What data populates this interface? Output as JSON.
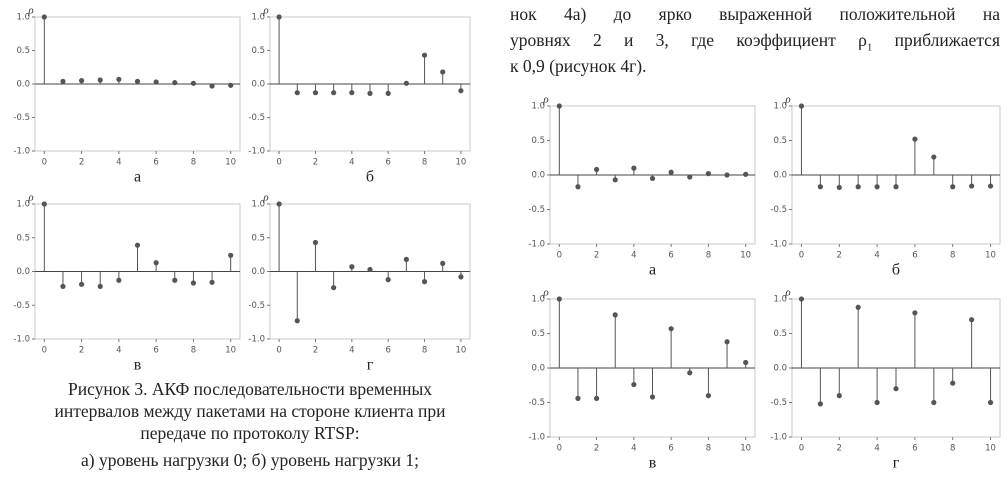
{
  "text": {
    "top_lines": [
      "нок 4а) до ярко выраженной положительной на",
      "к 0,9 (рисунок 4г)."
    ],
    "top_line_2": [
      "уровнях 2 и 3, где коэффициент ρ",
      "1",
      "приближается"
    ],
    "caption3": [
      "Рисунок 3. АКФ последовательности временных",
      "интервалов между пакетами на стороне клиента при",
      "передаче по протоколу RTSP:",
      "а) уровень нагрузки 0; б) уровень нагрузки 1;"
    ]
  },
  "chart_data": [
    {
      "type": "stem",
      "caption": "а",
      "y_label": "ρ",
      "color": "#555",
      "x": [
        0,
        1,
        2,
        3,
        4,
        5,
        6,
        7,
        8,
        9,
        10
      ],
      "values": [
        1,
        0.04,
        0.05,
        0.06,
        0.07,
        0.04,
        0.03,
        0.02,
        0.01,
        -0.03,
        -0.02
      ],
      "xlim": [
        -0.5,
        10.5
      ],
      "xticks": [
        0,
        2,
        4,
        6,
        8,
        10
      ],
      "ylim": [
        -1,
        1
      ],
      "yticks": [
        {
          "value": -1,
          "label": "-1.0"
        },
        {
          "value": -0.5,
          "label": "-0.5"
        },
        {
          "value": 0,
          "label": "0.0"
        },
        {
          "value": 0.5,
          "label": "0.5"
        },
        {
          "value": 1,
          "label": "1.0"
        }
      ]
    },
    {
      "type": "stem",
      "caption": "б",
      "y_label": "ρ",
      "color": "#555",
      "x": [
        0,
        1,
        2,
        3,
        4,
        5,
        6,
        7,
        8,
        9,
        10
      ],
      "values": [
        1,
        -0.13,
        -0.13,
        -0.13,
        -0.13,
        -0.14,
        -0.14,
        0.01,
        0.43,
        0.18,
        -0.1
      ],
      "xlim": [
        -0.5,
        10.5
      ],
      "xticks": [
        0,
        2,
        4,
        6,
        8,
        10
      ],
      "ylim": [
        -1,
        1
      ],
      "yticks": [
        {
          "value": -1,
          "label": "-1.0"
        },
        {
          "value": -0.5,
          "label": "-0.5"
        },
        {
          "value": 0,
          "label": "0.0"
        },
        {
          "value": 0.5,
          "label": "0.5"
        },
        {
          "value": 1,
          "label": "1.0"
        }
      ]
    },
    {
      "type": "stem",
      "caption": "в",
      "y_label": "ρ",
      "color": "#555",
      "x": [
        0,
        1,
        2,
        3,
        4,
        5,
        6,
        7,
        8,
        9,
        10
      ],
      "values": [
        1,
        -0.22,
        -0.19,
        -0.22,
        -0.13,
        0.39,
        0.13,
        -0.13,
        -0.17,
        -0.16,
        0.24
      ],
      "xlim": [
        -0.5,
        10.5
      ],
      "xticks": [
        0,
        2,
        4,
        6,
        8,
        10
      ],
      "ylim": [
        -1,
        1
      ],
      "yticks": [
        {
          "value": -1,
          "label": "-1.0"
        },
        {
          "value": -0.5,
          "label": "-0.5"
        },
        {
          "value": 0,
          "label": "0.0"
        },
        {
          "value": 0.5,
          "label": "0.5"
        },
        {
          "value": 1,
          "label": "1.0"
        }
      ]
    },
    {
      "type": "stem",
      "caption": "г",
      "y_label": "ρ",
      "color": "#555",
      "x": [
        0,
        1,
        2,
        3,
        4,
        5,
        6,
        7,
        8,
        9,
        10
      ],
      "values": [
        1,
        -0.73,
        0.43,
        -0.24,
        0.07,
        0.03,
        -0.12,
        0.18,
        -0.15,
        0.12,
        -0.08
      ],
      "xlim": [
        -0.5,
        10.5
      ],
      "xticks": [
        0,
        2,
        4,
        6,
        8,
        10
      ],
      "ylim": [
        -1,
        1
      ],
      "yticks": [
        {
          "value": -1,
          "label": "-1.0"
        },
        {
          "value": -0.5,
          "label": "-0.5"
        },
        {
          "value": 0,
          "label": "0.0"
        },
        {
          "value": 0.5,
          "label": "0.5"
        },
        {
          "value": 1,
          "label": "1.0"
        }
      ]
    },
    {
      "type": "stem",
      "caption": "а",
      "y_label": "ρ",
      "color": "#555",
      "x": [
        0,
        1,
        2,
        3,
        4,
        5,
        6,
        7,
        8,
        9,
        10
      ],
      "values": [
        1,
        -0.17,
        0.08,
        -0.07,
        0.1,
        -0.05,
        0.04,
        -0.03,
        0.02,
        0,
        0.01
      ],
      "xlim": [
        -0.5,
        10.5
      ],
      "xticks": [
        0,
        2,
        4,
        6,
        8,
        10
      ],
      "ylim": [
        -1,
        1
      ],
      "yticks": [
        {
          "value": -1,
          "label": "-1.0"
        },
        {
          "value": -0.5,
          "label": "-0.5"
        },
        {
          "value": 0,
          "label": "0.0"
        },
        {
          "value": 0.5,
          "label": "0.5"
        },
        {
          "value": 1,
          "label": "1.0"
        }
      ]
    },
    {
      "type": "stem",
      "caption": "б",
      "y_label": "ρ",
      "color": "#555",
      "x": [
        0,
        1,
        2,
        3,
        4,
        5,
        6,
        7,
        8,
        9,
        10
      ],
      "values": [
        1,
        -0.17,
        -0.18,
        -0.17,
        -0.17,
        -0.17,
        0.52,
        0.26,
        -0.17,
        -0.16,
        -0.16
      ],
      "xlim": [
        -0.5,
        10.5
      ],
      "xticks": [
        0,
        2,
        4,
        6,
        8,
        10
      ],
      "ylim": [
        -1,
        1
      ],
      "yticks": [
        {
          "value": -1,
          "label": "-1.0"
        },
        {
          "value": -0.5,
          "label": "-0.5"
        },
        {
          "value": 0,
          "label": "0.0"
        },
        {
          "value": 0.5,
          "label": "0.5"
        },
        {
          "value": 1,
          "label": "1.0"
        }
      ]
    },
    {
      "type": "stem",
      "caption": "в",
      "y_label": "ρ",
      "color": "#555",
      "x": [
        0,
        1,
        2,
        3,
        4,
        5,
        6,
        7,
        8,
        9,
        10
      ],
      "values": [
        1,
        -0.44,
        -0.44,
        0.77,
        -0.24,
        -0.42,
        0.57,
        -0.07,
        -0.4,
        0.38,
        0.08
      ],
      "xlim": [
        -0.5,
        10.5
      ],
      "xticks": [
        0,
        2,
        4,
        6,
        8,
        10
      ],
      "ylim": [
        -1,
        1
      ],
      "yticks": [
        {
          "value": -1,
          "label": "-1.0"
        },
        {
          "value": -0.5,
          "label": "-0.5"
        },
        {
          "value": 0,
          "label": "0.0"
        },
        {
          "value": 0.5,
          "label": "0.5"
        },
        {
          "value": 1,
          "label": "1.0"
        }
      ]
    },
    {
      "type": "stem",
      "caption": "г",
      "y_label": "ρ",
      "color": "#555",
      "x": [
        0,
        1,
        2,
        3,
        4,
        5,
        6,
        7,
        8,
        9,
        10
      ],
      "values": [
        1,
        -0.52,
        -0.4,
        0.88,
        -0.5,
        -0.3,
        0.8,
        -0.5,
        -0.22,
        0.7,
        -0.5
      ],
      "xlim": [
        -0.5,
        10.5
      ],
      "xticks": [
        0,
        2,
        4,
        6,
        8,
        10
      ],
      "ylim": [
        -1,
        1
      ],
      "yticks": [
        {
          "value": -1,
          "label": "-1.0"
        },
        {
          "value": -0.5,
          "label": "-0.5"
        },
        {
          "value": 0,
          "label": "0.0"
        },
        {
          "value": 0.5,
          "label": "0.5"
        },
        {
          "value": 1,
          "label": "1.0"
        }
      ]
    }
  ]
}
